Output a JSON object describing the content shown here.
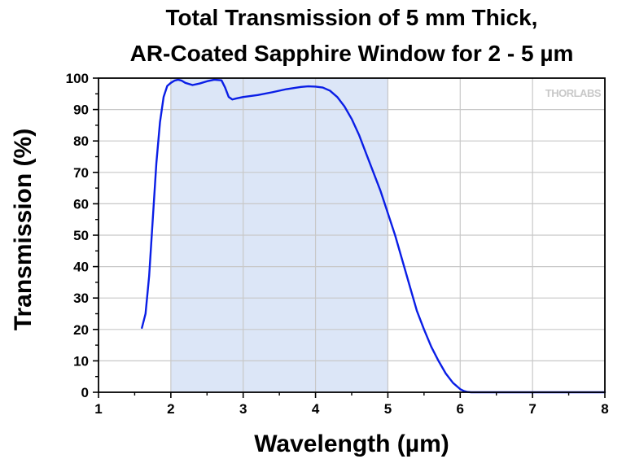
{
  "chart_data": {
    "type": "line",
    "title_lines": [
      "Total Transmission of 5 mm Thick,",
      "AR-Coated Sapphire Window for 2 - 5 µm"
    ],
    "xlabel": "Wavelength (µm)",
    "ylabel": "Transmission (%)",
    "xlim": [
      1,
      8
    ],
    "ylim": [
      0,
      100
    ],
    "x_ticks": [
      1,
      2,
      3,
      4,
      5,
      6,
      7,
      8
    ],
    "x_tick_labels": [
      "1",
      "2",
      "3",
      "4",
      "5",
      "6",
      "7",
      "8"
    ],
    "y_ticks": [
      0,
      10,
      20,
      30,
      40,
      50,
      60,
      70,
      80,
      90,
      100
    ],
    "y_tick_labels": [
      "0",
      "10",
      "20",
      "30",
      "40",
      "50",
      "60",
      "70",
      "80",
      "90",
      "100"
    ],
    "grid": true,
    "highlight_band": {
      "x_start": 2,
      "x_end": 5,
      "color": "#dce6f7"
    },
    "logo_text": "THORLABS",
    "colors": {
      "line": "#0a1ee6",
      "grid": "#c8c8c8",
      "band": "#dce6f7",
      "axis": "#000000"
    },
    "series": [
      {
        "color": "#0a1ee6",
        "x": [
          1.6,
          1.65,
          1.7,
          1.75,
          1.8,
          1.85,
          1.9,
          1.95,
          2.0,
          2.05,
          2.1,
          2.15,
          2.2,
          2.3,
          2.4,
          2.5,
          2.6,
          2.7,
          2.75,
          2.8,
          2.85,
          2.9,
          3.0,
          3.2,
          3.4,
          3.6,
          3.8,
          3.9,
          4.0,
          4.1,
          4.2,
          4.3,
          4.4,
          4.5,
          4.6,
          4.7,
          4.8,
          4.9,
          5.0,
          5.1,
          5.2,
          5.3,
          5.4,
          5.5,
          5.6,
          5.7,
          5.8,
          5.9,
          6.0,
          6.05,
          6.1,
          6.15,
          6.2,
          6.5,
          7.0,
          8.0
        ],
        "y": [
          20.5,
          25,
          37,
          55,
          73,
          86,
          94,
          97.5,
          98.5,
          99.2,
          99.5,
          99.2,
          98.5,
          97.8,
          98.3,
          99,
          99.5,
          99.3,
          97,
          94,
          93.2,
          93.5,
          94,
          94.6,
          95.5,
          96.5,
          97.2,
          97.4,
          97.3,
          97,
          96,
          94,
          91,
          87,
          82,
          76,
          70,
          64,
          57,
          50,
          42,
          34,
          26,
          20,
          14.5,
          10,
          6,
          3,
          1,
          0.4,
          0.1,
          0,
          0,
          0,
          0,
          0
        ]
      }
    ]
  }
}
